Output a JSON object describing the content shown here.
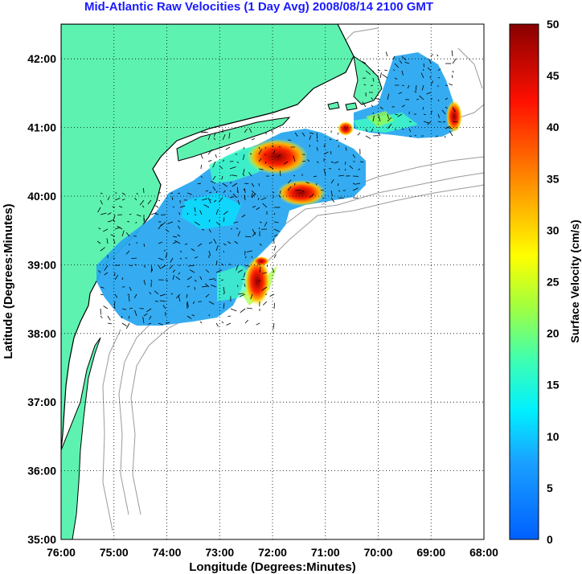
{
  "title": "Mid-Atlantic Raw Velocities (1 Day Avg) 2008/08/14 2100 GMT",
  "xlabel": "Longitude (Degrees:Minutes)",
  "ylabel": "Latitude (Degrees:Minutes)",
  "colorbar_label": "Surface Velocity (cm/s)",
  "x_ticks": [
    "76:00",
    "75:00",
    "74:00",
    "73:00",
    "72:00",
    "71:00",
    "70:00",
    "69:00",
    "68:00"
  ],
  "y_ticks": [
    "42:00",
    "41:00",
    "40:00",
    "39:00",
    "38:00",
    "37:00",
    "36:00",
    "35:00"
  ],
  "colorbar_ticks": [
    "50",
    "45",
    "40",
    "35",
    "30",
    "25",
    "20",
    "15",
    "10",
    "5",
    "0"
  ],
  "colors": {
    "land": "#5ef2b0",
    "coast": "#000000",
    "bathymetry": "#9a9a9a",
    "grid": "#000000",
    "title": "#1a1aff"
  },
  "chart_data": {
    "type": "heatmap",
    "title": "Mid-Atlantic Raw Velocities (1 Day Avg) 2008/08/14 2100 GMT",
    "xlabel": "Longitude (Degrees:Minutes)",
    "ylabel": "Latitude (Degrees:Minutes)",
    "xlim": [
      -76,
      -68
    ],
    "ylim": [
      35,
      42.5
    ],
    "grid": true,
    "colorbar": {
      "label": "Surface Velocity (cm/s)",
      "range": [
        0,
        50
      ],
      "colormap": "jet"
    },
    "hotspots": [
      {
        "lon": -71.9,
        "lat": 40.5,
        "value": 48
      },
      {
        "lon": -71.5,
        "lat": 40.0,
        "value": 45
      },
      {
        "lon": -72.6,
        "lat": 38.7,
        "value": 47
      },
      {
        "lon": -68.8,
        "lat": 41.2,
        "value": 40
      },
      {
        "lon": -70.6,
        "lat": 41.0,
        "value": 42
      }
    ]
  }
}
